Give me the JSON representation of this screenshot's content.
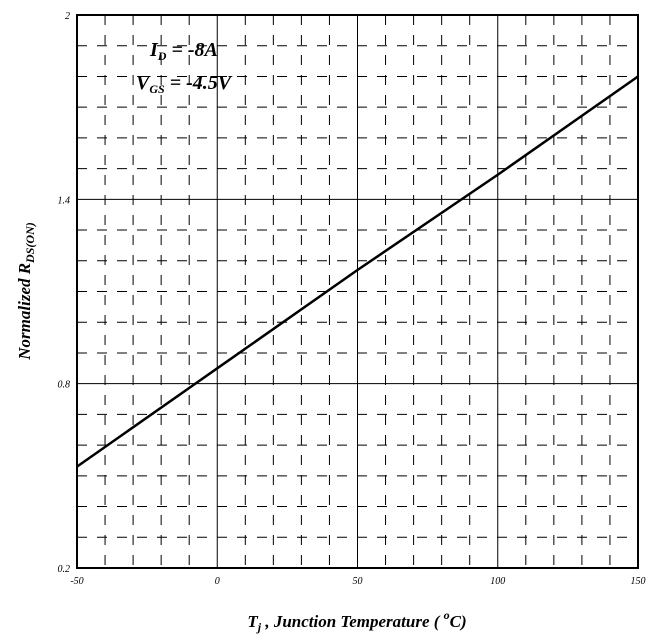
{
  "chart_data": {
    "type": "line",
    "title": "",
    "xlabel": "T_j , Junction Temperature ( °C)",
    "ylabel": "Normalized R_DS(ON)",
    "xlim": [
      -50,
      150
    ],
    "ylim": [
      0.2,
      2.0
    ],
    "log_scale": false,
    "grid": "major solid, minor dashed",
    "x_ticks": [
      "-50",
      "0",
      "50",
      "100",
      "150"
    ],
    "y_ticks": [
      "0.2",
      "0.8",
      "1.4",
      "2"
    ],
    "series": [
      {
        "x": [
          -50,
          0,
          50,
          100,
          150
        ],
        "y": [
          0.53,
          0.85,
          1.17,
          1.48,
          1.8
        ]
      }
    ],
    "annotations": [
      "I_D = -8A",
      "V_GS = -4.5V"
    ],
    "colors": {
      "line": "#000000",
      "grid": "#000000",
      "background": "#ffffff"
    }
  },
  "labels": {
    "xlabel_main": "T",
    "xlabel_sub": "j",
    "xlabel_rest": " , Junction Temperature ( ",
    "xlabel_sup": "o",
    "xlabel_unit": "C)",
    "ylabel_main": "Normalized R",
    "ylabel_sub": "DS(ON)",
    "ann1_main": "I",
    "ann1_sub": "D",
    "ann1_rest": " = -8A",
    "ann2_main": "V",
    "ann2_sub": "GS",
    "ann2_rest": " = -4.5V"
  }
}
